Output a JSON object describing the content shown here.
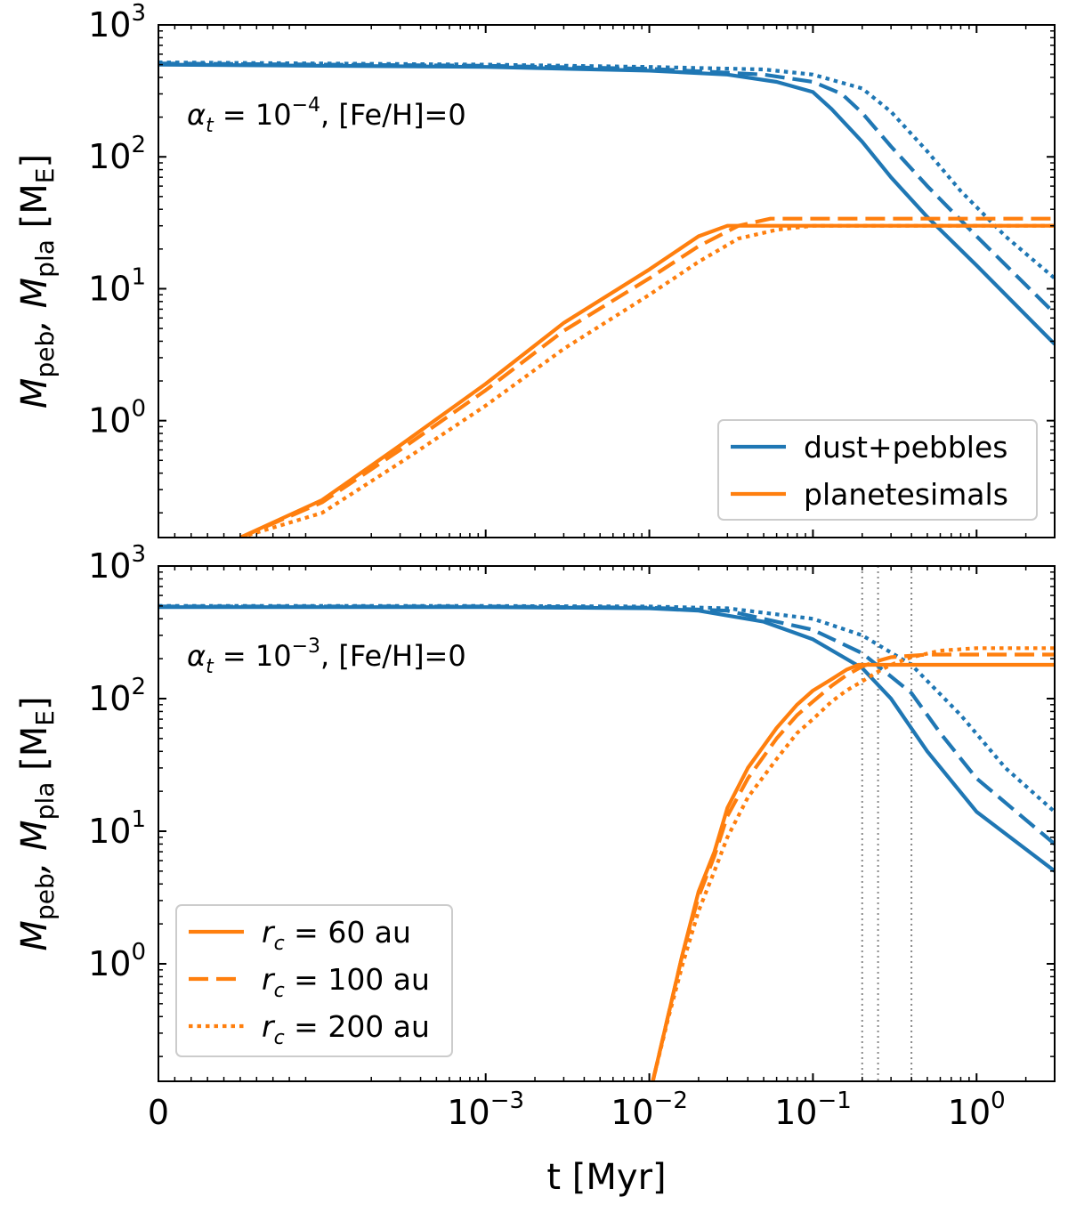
{
  "colors": {
    "blue": "#1f77b4",
    "orange": "#ff7f0e",
    "vline": "#888888"
  },
  "shared": {
    "xlabel": "t [Myr]",
    "xscale": "symlog",
    "xlim": [
      0,
      3.0
    ],
    "x_ticks": [
      {
        "value": 0,
        "base": "0",
        "exp": ""
      },
      {
        "value": 0.001,
        "base": "10",
        "exp": "−3"
      },
      {
        "value": 0.01,
        "base": "10",
        "exp": "−2"
      },
      {
        "value": 0.1,
        "base": "10",
        "exp": "−1"
      },
      {
        "value": 1,
        "base": "10",
        "exp": "0"
      }
    ],
    "ylabel": {
      "pre": "M",
      "sub1": "peb",
      "mid": ", M",
      "sub2": "pla",
      "post": " [M",
      "sub3": "E",
      "end": "]"
    },
    "yscale": "log",
    "ylim": [
      0.13,
      1000
    ],
    "y_ticks": [
      {
        "value": 1,
        "base": "10",
        "exp": "0"
      },
      {
        "value": 10,
        "base": "10",
        "exp": "1"
      },
      {
        "value": 100,
        "base": "10",
        "exp": "2"
      },
      {
        "value": 1000,
        "base": "10",
        "exp": "3"
      }
    ]
  },
  "chart_data": [
    {
      "type": "line",
      "annotation": {
        "sym": "α",
        "sub": "t",
        "rest": " = 10",
        "exp": "−4",
        "tail": ", [Fe/H]=0"
      },
      "legend": {
        "placement": "lower-right",
        "entries": [
          {
            "label": "dust+pebbles",
            "color": "blue",
            "style": "solid"
          },
          {
            "label": "planetesimals",
            "color": "orange",
            "style": "solid"
          }
        ]
      },
      "series": [
        {
          "group": "dust+pebbles",
          "rc": "60 au",
          "style": "solid",
          "color": "blue",
          "x": [
            0,
            0.001,
            0.01,
            0.03,
            0.06,
            0.1,
            0.13,
            0.2,
            0.3,
            0.5,
            1.0,
            3.0
          ],
          "y": [
            500,
            480,
            450,
            420,
            370,
            310,
            230,
            130,
            70,
            35,
            15,
            3.8
          ]
        },
        {
          "group": "dust+pebbles",
          "rc": "100 au",
          "style": "dashed",
          "color": "blue",
          "x": [
            0,
            0.001,
            0.01,
            0.05,
            0.1,
            0.15,
            0.2,
            0.3,
            0.5,
            1.0,
            3.0
          ],
          "y": [
            510,
            490,
            465,
            420,
            370,
            300,
            215,
            120,
            60,
            25,
            6.5
          ]
        },
        {
          "group": "dust+pebbles",
          "rc": "200 au",
          "style": "dotted",
          "color": "blue",
          "x": [
            0,
            0.001,
            0.01,
            0.05,
            0.1,
            0.2,
            0.3,
            0.5,
            0.8,
            1.5,
            3.0
          ],
          "y": [
            520,
            500,
            480,
            460,
            420,
            330,
            220,
            110,
            55,
            25,
            12
          ]
        },
        {
          "group": "planetesimals",
          "rc": "60 au",
          "style": "solid",
          "color": "orange",
          "x": [
            5e-05,
            0.0001,
            0.0003,
            0.001,
            0.003,
            0.01,
            0.02,
            0.03,
            3.0
          ],
          "y": [
            0.13,
            0.25,
            0.65,
            1.9,
            5.5,
            14,
            25,
            30,
            30
          ]
        },
        {
          "group": "planetesimals",
          "rc": "100 au",
          "style": "dashed",
          "color": "orange",
          "x": [
            5e-05,
            0.0001,
            0.0003,
            0.001,
            0.003,
            0.01,
            0.02,
            0.035,
            0.055,
            3.0
          ],
          "y": [
            0.13,
            0.24,
            0.6,
            1.7,
            4.8,
            12,
            21,
            30,
            34,
            34
          ]
        },
        {
          "group": "planetesimals",
          "rc": "200 au",
          "style": "dotted",
          "color": "orange",
          "x": [
            5e-05,
            0.0001,
            0.0003,
            0.001,
            0.003,
            0.01,
            0.02,
            0.035,
            0.06,
            0.1,
            3.0
          ],
          "y": [
            0.13,
            0.2,
            0.48,
            1.3,
            3.5,
            9,
            16,
            24,
            28,
            30,
            30
          ]
        }
      ],
      "vlines": []
    },
    {
      "type": "line",
      "annotation": {
        "sym": "α",
        "sub": "t",
        "rest": " = 10",
        "exp": "−3",
        "tail": ", [Fe/H]=0"
      },
      "legend": {
        "placement": "lower-left",
        "entries": [
          {
            "label": {
              "sym": "r",
              "sub": "c",
              "rest": " = 60 au"
            },
            "color": "orange",
            "style": "solid"
          },
          {
            "label": {
              "sym": "r",
              "sub": "c",
              "rest": " = 100 au"
            },
            "color": "orange",
            "style": "dashed"
          },
          {
            "label": {
              "sym": "r",
              "sub": "c",
              "rest": " = 200 au"
            },
            "color": "orange",
            "style": "dotted"
          }
        ]
      },
      "series": [
        {
          "group": "dust+pebbles",
          "rc": "60 au",
          "style": "solid",
          "color": "blue",
          "x": [
            0,
            0.001,
            0.01,
            0.02,
            0.05,
            0.1,
            0.2,
            0.3,
            0.5,
            1.0,
            3.0
          ],
          "y": [
            490,
            490,
            480,
            460,
            380,
            280,
            170,
            100,
            40,
            14,
            5
          ]
        },
        {
          "group": "dust+pebbles",
          "rc": "100 au",
          "style": "dashed",
          "color": "blue",
          "x": [
            0,
            0.001,
            0.01,
            0.03,
            0.1,
            0.2,
            0.4,
            0.6,
            1.0,
            3.0
          ],
          "y": [
            495,
            495,
            485,
            460,
            330,
            220,
            110,
            55,
            25,
            8
          ]
        },
        {
          "group": "dust+pebbles",
          "rc": "200 au",
          "style": "dotted",
          "color": "blue",
          "x": [
            0,
            0.001,
            0.01,
            0.03,
            0.1,
            0.2,
            0.4,
            0.8,
            1.5,
            3.0
          ],
          "y": [
            500,
            500,
            495,
            480,
            400,
            300,
            180,
            75,
            30,
            14
          ]
        },
        {
          "group": "planetesimals",
          "rc": "60 au",
          "style": "solid",
          "color": "orange",
          "x": [
            0.0105,
            0.013,
            0.016,
            0.02,
            0.025,
            0.03,
            0.04,
            0.06,
            0.08,
            0.1,
            0.13,
            0.16,
            0.19,
            3.0
          ],
          "y": [
            0.13,
            0.4,
            1.2,
            3.5,
            7,
            15,
            30,
            60,
            90,
            115,
            140,
            165,
            180,
            180
          ]
        },
        {
          "group": "planetesimals",
          "rc": "100 au",
          "style": "dashed",
          "color": "orange",
          "x": [
            0.0105,
            0.013,
            0.016,
            0.02,
            0.025,
            0.03,
            0.04,
            0.06,
            0.08,
            0.1,
            0.13,
            0.16,
            0.2,
            0.24,
            0.3,
            0.5,
            3.0
          ],
          "y": [
            0.13,
            0.4,
            1.2,
            3.2,
            6.5,
            13,
            25,
            50,
            75,
            95,
            125,
            150,
            175,
            190,
            205,
            215,
            215
          ]
        },
        {
          "group": "planetesimals",
          "rc": "200 au",
          "style": "dotted",
          "color": "orange",
          "x": [
            0.0105,
            0.013,
            0.016,
            0.02,
            0.025,
            0.03,
            0.04,
            0.06,
            0.08,
            0.1,
            0.13,
            0.16,
            0.2,
            0.25,
            0.3,
            0.4,
            0.6,
            1.0,
            3.0
          ],
          "y": [
            0.13,
            0.38,
            1.0,
            2.5,
            5,
            9,
            18,
            35,
            55,
            70,
            95,
            115,
            135,
            160,
            180,
            205,
            230,
            240,
            240
          ]
        }
      ],
      "vlines": [
        0.2,
        0.25,
        0.4
      ]
    }
  ]
}
